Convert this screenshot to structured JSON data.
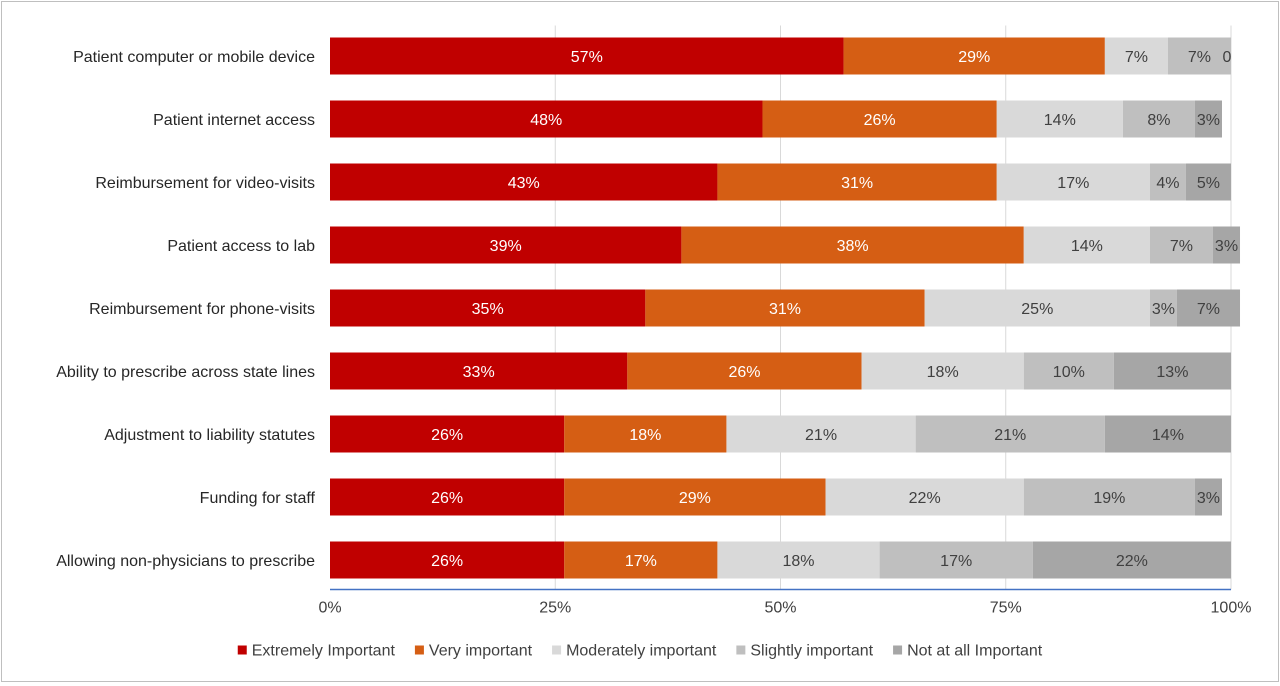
{
  "chart_data": {
    "type": "bar",
    "orientation": "horizontal",
    "stacked": true,
    "percent_stacked": true,
    "title": "",
    "xlabel": "",
    "ylabel": "",
    "xlim": [
      0,
      100
    ],
    "x_ticks": [
      "0%",
      "25%",
      "50%",
      "75%",
      "100%"
    ],
    "grid": true,
    "legend_position": "bottom",
    "categories": [
      "Patient computer or mobile device",
      "Patient internet access",
      "Reimbursement for video-visits",
      "Patient access to lab",
      "Reimbursement for phone-visits",
      "Ability to prescribe across state lines",
      "Adjustment to liability statutes",
      "Funding for staff",
      "Allowing non-physicians to prescribe"
    ],
    "series": [
      {
        "name": "Extremely Important",
        "color": "#c00000",
        "label_color": "#ffffff",
        "values": [
          57,
          48,
          43,
          39,
          35,
          33,
          26,
          26,
          26
        ],
        "labels": [
          "57%",
          "48%",
          "43%",
          "39%",
          "35%",
          "33%",
          "26%",
          "26%",
          "26%"
        ]
      },
      {
        "name": "Very important",
        "color": "#d55e14",
        "label_color": "#ffffff",
        "values": [
          29,
          26,
          31,
          38,
          31,
          26,
          18,
          29,
          17
        ],
        "labels": [
          "29%",
          "26%",
          "31%",
          "38%",
          "31%",
          "26%",
          "18%",
          "29%",
          "17%"
        ]
      },
      {
        "name": "Moderately important",
        "color": "#d9d9d9",
        "label_color": "#404040",
        "values": [
          7,
          14,
          17,
          14,
          25,
          18,
          21,
          22,
          18
        ],
        "labels": [
          "7%",
          "14%",
          "17%",
          "14%",
          "25%",
          "18%",
          "21%",
          "22%",
          "18%"
        ]
      },
      {
        "name": "Slightly important",
        "color": "#bfbfbf",
        "label_color": "#404040",
        "values": [
          7,
          8,
          4,
          7,
          3,
          10,
          21,
          19,
          17
        ],
        "labels": [
          "7%",
          "8%",
          "4%",
          "7%",
          "3%",
          "10%",
          "21%",
          "19%",
          "17%"
        ]
      },
      {
        "name": "Not at all Important",
        "color": "#a6a6a6",
        "label_color": "#404040",
        "values": [
          0,
          3,
          5,
          3,
          7,
          13,
          14,
          3,
          22
        ],
        "labels": [
          "0",
          "3%",
          "5%",
          "3%",
          "7%",
          "13%",
          "14%",
          "3%",
          "22%"
        ]
      }
    ]
  }
}
